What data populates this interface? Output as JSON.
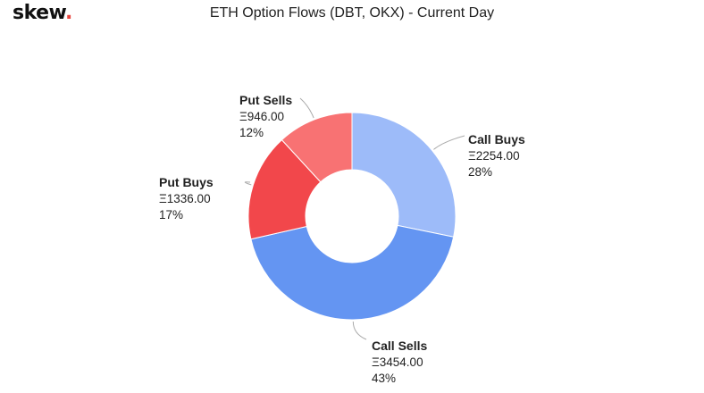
{
  "brand": {
    "name": "skew",
    "dot": "."
  },
  "chart_data": {
    "type": "pie",
    "title": "ETH Option Flows (DBT, OKX) - Current Day",
    "donut": true,
    "slices": [
      {
        "name": "Call Buys",
        "value_text": "Ξ2254.00",
        "value": 2254.0,
        "percent_text": "28%",
        "percent": 28,
        "color": "#9dbbf9"
      },
      {
        "name": "Call Sells",
        "value_text": "Ξ3454.00",
        "value": 3454.0,
        "percent_text": "43%",
        "percent": 43,
        "color": "#6495f2"
      },
      {
        "name": "Put Buys",
        "value_text": "Ξ1336.00",
        "value": 1336.0,
        "percent_text": "17%",
        "percent": 17,
        "color": "#f2474b"
      },
      {
        "name": "Put Sells",
        "value_text": "Ξ946.00",
        "value": 946.0,
        "percent_text": "12%",
        "percent": 12,
        "color": "#f87273"
      }
    ]
  }
}
